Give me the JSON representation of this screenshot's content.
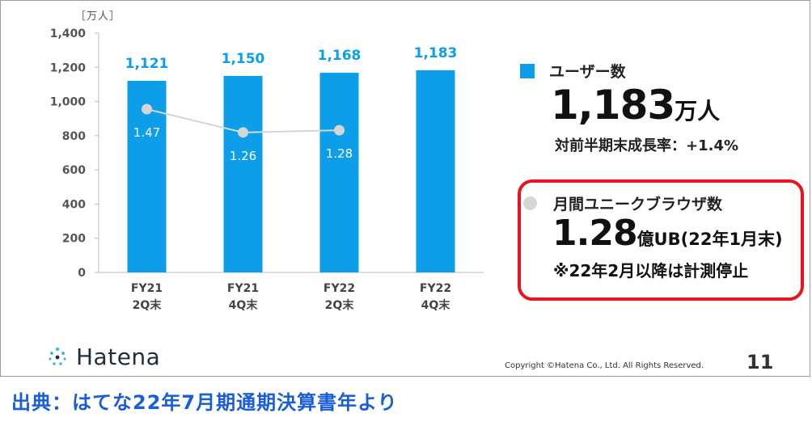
{
  "chart_data": {
    "type": "bar",
    "unit_label": "［万人］",
    "categories": [
      {
        "line1": "FY21",
        "line2": "2Q末"
      },
      {
        "line1": "FY21",
        "line2": "4Q末"
      },
      {
        "line1": "FY22",
        "line2": "2Q末"
      },
      {
        "line1": "FY22",
        "line2": "4Q末"
      }
    ],
    "series": [
      {
        "name": "ユーザー数",
        "type": "bar",
        "color": "#0d9ee9",
        "values": [
          1121,
          1150,
          1168,
          1183
        ],
        "labels": [
          "1,121",
          "1,150",
          "1,168",
          "1,183"
        ]
      },
      {
        "name": "月間ユニークブラウザ数",
        "type": "line",
        "color": "#d6d6d6",
        "values": [
          1.47,
          1.26,
          1.28,
          null
        ],
        "labels": [
          "1.47",
          "1.26",
          "1.28",
          ""
        ]
      }
    ],
    "ylim": [
      0,
      1400
    ],
    "yticks": [
      "0",
      "200",
      "400",
      "600",
      "800",
      "1,000",
      "1,200",
      "1,400"
    ],
    "grid": false
  },
  "panel": {
    "users": {
      "legend": "ユーザー数",
      "value": "1,183",
      "unit": "万人",
      "growth": "対前半期末成長率：+1.4%"
    },
    "ub": {
      "legend": "月間ユニークブラウザ数",
      "value": "1.28",
      "suffix": "億UB(22年1月末)",
      "note": "※22年2月以降は計測停止"
    }
  },
  "footer": {
    "logo": "Hatena",
    "copyright": "Copyright ©Hatena Co., Ltd. All Rights Reserved.",
    "page": "11"
  },
  "source": "出典：はてな22年7月期通期決算書年より",
  "colors": {
    "accent": "#0d9ee9",
    "highlight": "#e8141e",
    "source_text": "#1a5ddb"
  }
}
